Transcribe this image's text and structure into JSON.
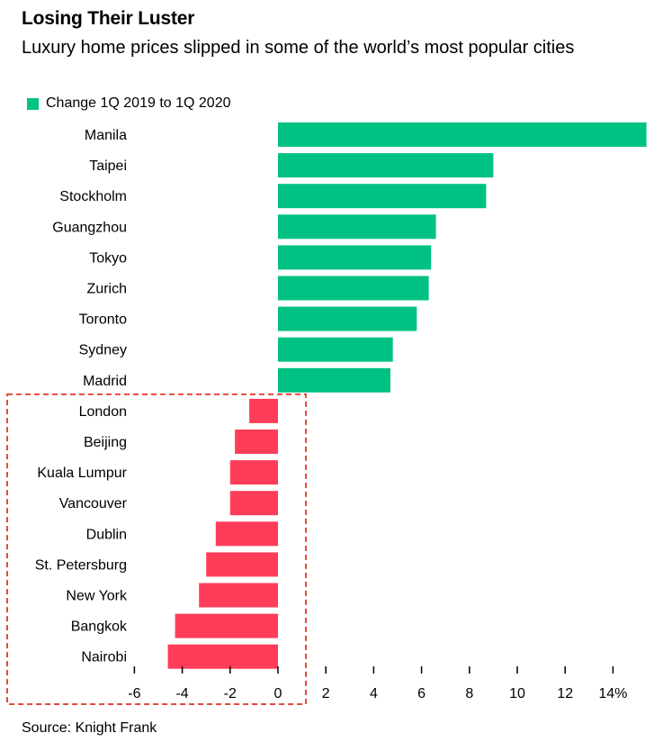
{
  "title": "Losing Their Luster",
  "subtitle": "Luxury home prices slipped in some of the world’s most popular cities",
  "legend": {
    "label": "Change 1Q 2019 to 1Q 2020",
    "color": "#00c184"
  },
  "source": "Source: Knight Frank",
  "colors": {
    "positive": "#00c184",
    "negative": "#ff3d59",
    "highlight_box": "#e8483a"
  },
  "chart_data": {
    "type": "bar",
    "orientation": "horizontal",
    "categories": [
      "Manila",
      "Taipei",
      "Stockholm",
      "Guangzhou",
      "Tokyo",
      "Zurich",
      "Toronto",
      "Sydney",
      "Madrid",
      "London",
      "Beijing",
      "Kuala Lumpur",
      "Vancouver",
      "Dublin",
      "St. Petersburg",
      "New York",
      "Bangkok",
      "Nairobi"
    ],
    "series": [
      {
        "name": "Change 1Q 2019 to 1Q 2020",
        "values": [
          15.4,
          9.0,
          8.7,
          6.6,
          6.4,
          6.3,
          5.8,
          4.8,
          4.7,
          -1.2,
          -1.8,
          -2.0,
          -2.0,
          -2.6,
          -3.0,
          -3.3,
          -4.3,
          -4.6
        ]
      }
    ],
    "xlim": [
      -6,
      15.4
    ],
    "xticks": [
      -6,
      -4,
      -2,
      0,
      2,
      4,
      6,
      8,
      10,
      12,
      14
    ],
    "xtick_labels": [
      "-6",
      "-4",
      "-2",
      "0",
      "2",
      "4",
      "6",
      "8",
      "10",
      "12",
      "14%"
    ],
    "xlabel": "",
    "ylabel": "",
    "grid": false,
    "legend_position": "top-left",
    "highlighted_group": [
      "London",
      "Beijing",
      "Kuala Lumpur",
      "Vancouver",
      "Dublin",
      "St. Petersburg",
      "New York",
      "Bangkok",
      "Nairobi"
    ]
  }
}
